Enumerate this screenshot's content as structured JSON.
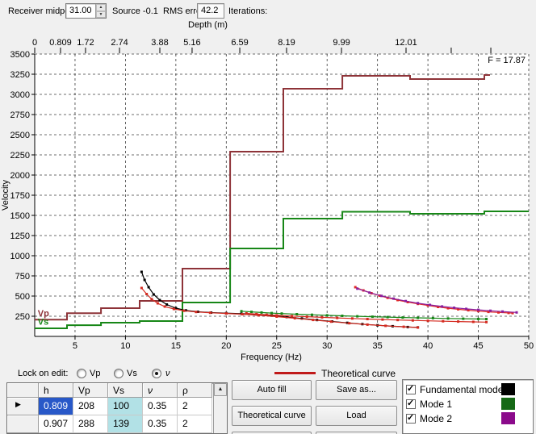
{
  "header": {
    "receiver_midpoint_label": "Receiver midpoint",
    "receiver_midpoint_value": "31.00",
    "source_label": "Source -0.1",
    "rms_error_label": "RMS error",
    "rms_error_value": "42.2",
    "iterations_label": "Iterations:"
  },
  "chart_data": {
    "type": "line",
    "xlabel": "Frequency (Hz)",
    "ylabel": "Velocity",
    "top_axis_label": "Depth (m)",
    "annotation": "F = 17.87",
    "grid": true,
    "xlim": [
      1,
      50
    ],
    "ylim": [
      0,
      3500
    ],
    "x_ticks": [
      5,
      10,
      15,
      20,
      25,
      30,
      35,
      40,
      45,
      50
    ],
    "y_ticks": [
      250,
      500,
      750,
      1000,
      1250,
      1500,
      1750,
      2000,
      2250,
      2500,
      2750,
      3000,
      3250,
      3500
    ],
    "top_axis_ticks": [
      {
        "label": "0",
        "f": 1.0
      },
      {
        "label": "0.809",
        "f": 3.56
      },
      {
        "label": "1.72",
        "f": 6.04
      },
      {
        "label": "2.74",
        "f": 9.41
      },
      {
        "label": "3.88",
        "f": 13.41
      },
      {
        "label": "5.16",
        "f": 16.61
      },
      {
        "label": "6.59",
        "f": 21.34
      },
      {
        "label": "8.19",
        "f": 25.98
      },
      {
        "label": "9.99",
        "f": 31.43
      },
      {
        "label": "12.01",
        "f": 37.83
      },
      {
        "label": "",
        "f": 42.31
      },
      {
        "label": "",
        "f": 46.24
      }
    ],
    "inline_labels": [
      {
        "text": "Vp",
        "color": "#8e3338",
        "f": 1.3,
        "v": 290
      },
      {
        "text": "Vs",
        "color": "#178717",
        "f": 1.3,
        "v": 185
      }
    ],
    "series": [
      {
        "name": "Vp model",
        "color": "#8e3338",
        "width": 2,
        "markers": false,
        "points": [
          [
            1,
            208
          ],
          [
            4.2,
            208
          ],
          [
            4.2,
            288
          ],
          [
            7.57,
            288
          ],
          [
            7.57,
            350
          ],
          [
            11.41,
            350
          ],
          [
            11.41,
            440
          ],
          [
            15.65,
            440
          ],
          [
            15.65,
            840
          ],
          [
            20.38,
            840
          ],
          [
            20.38,
            2290
          ],
          [
            25.66,
            2290
          ],
          [
            25.66,
            3070
          ],
          [
            31.51,
            3070
          ],
          [
            31.51,
            3230
          ],
          [
            38.23,
            3230
          ],
          [
            38.23,
            3190
          ],
          [
            45.6,
            3190
          ],
          [
            45.6,
            3240
          ],
          [
            46.16,
            3240
          ]
        ]
      },
      {
        "name": "Vs model",
        "color": "#178717",
        "width": 2,
        "markers": false,
        "points": [
          [
            1,
            100
          ],
          [
            4.2,
            100
          ],
          [
            4.2,
            139
          ],
          [
            7.57,
            139
          ],
          [
            7.57,
            170
          ],
          [
            11.41,
            170
          ],
          [
            11.41,
            190
          ],
          [
            15.65,
            190
          ],
          [
            15.65,
            420
          ],
          [
            20.38,
            420
          ],
          [
            20.38,
            1090
          ],
          [
            25.66,
            1090
          ],
          [
            25.66,
            1460
          ],
          [
            31.51,
            1460
          ],
          [
            31.51,
            1545
          ],
          [
            38.23,
            1545
          ],
          [
            38.23,
            1520
          ],
          [
            45.6,
            1520
          ],
          [
            45.6,
            1550
          ],
          [
            50,
            1550
          ]
        ]
      },
      {
        "name": "Fundamental mode observed",
        "color": "#000000",
        "width": 1.2,
        "markers": true,
        "points": [
          [
            11.6,
            800
          ],
          [
            11.9,
            700
          ],
          [
            12.3,
            610
          ],
          [
            12.8,
            520
          ],
          [
            13.4,
            450
          ],
          [
            14.1,
            395
          ],
          [
            15,
            350
          ],
          [
            16,
            322
          ],
          [
            17.2,
            305
          ],
          [
            18.5,
            295
          ],
          [
            20,
            288
          ],
          [
            21.5,
            281
          ],
          [
            23,
            272
          ],
          [
            24.5,
            258
          ],
          [
            26,
            240
          ],
          [
            27.5,
            222
          ],
          [
            29,
            203
          ],
          [
            30.5,
            185
          ],
          [
            32,
            168
          ],
          [
            33.5,
            152
          ],
          [
            35,
            138
          ],
          [
            36.5,
            126
          ],
          [
            38,
            116
          ],
          [
            39,
            112
          ]
        ]
      },
      {
        "name": "Fundamental mode theoretical",
        "color": "#d42a20",
        "width": 1.2,
        "markers": true,
        "points": [
          [
            11.6,
            600
          ],
          [
            12.1,
            525
          ],
          [
            12.6,
            462
          ],
          [
            13.2,
            410
          ],
          [
            13.9,
            370
          ],
          [
            14.8,
            340
          ],
          [
            15.8,
            318
          ],
          [
            17,
            303
          ],
          [
            18.4,
            293
          ],
          [
            20,
            284
          ],
          [
            21.6,
            275
          ],
          [
            23.2,
            262
          ],
          [
            25,
            245
          ],
          [
            26.8,
            225
          ],
          [
            28.6,
            204
          ],
          [
            30.4,
            183
          ],
          [
            32.2,
            163
          ],
          [
            34,
            146
          ],
          [
            35.8,
            131
          ],
          [
            37.6,
            119
          ],
          [
            39,
            110
          ]
        ]
      },
      {
        "name": "Mode 1 observed",
        "color": "#178717",
        "width": 1.2,
        "markers": true,
        "points": [
          [
            21.5,
            312
          ],
          [
            22.5,
            304
          ],
          [
            23.5,
            296
          ],
          [
            24.5,
            289
          ],
          [
            25.5,
            283
          ],
          [
            27,
            275
          ],
          [
            28.5,
            268
          ],
          [
            30,
            261
          ],
          [
            31.5,
            255
          ],
          [
            33,
            249
          ],
          [
            34.5,
            244
          ],
          [
            36,
            239
          ],
          [
            37.5,
            234
          ],
          [
            39,
            230
          ],
          [
            40.5,
            226
          ],
          [
            42,
            222
          ],
          [
            43.5,
            219
          ],
          [
            45,
            216
          ],
          [
            45.8,
            215
          ]
        ],
        "note": ""
      },
      {
        "name": "Mode 1 theoretical",
        "color": "#d42a20",
        "width": 1.2,
        "markers": true,
        "points": [
          [
            22,
            285
          ],
          [
            23,
            276
          ],
          [
            24,
            268
          ],
          [
            25,
            261
          ],
          [
            26.5,
            252
          ],
          [
            28,
            244
          ],
          [
            29.5,
            236
          ],
          [
            31,
            229
          ],
          [
            32.5,
            222
          ],
          [
            34,
            215
          ],
          [
            35.5,
            209
          ],
          [
            37,
            203
          ],
          [
            38.5,
            198
          ],
          [
            40,
            193
          ],
          [
            41.5,
            188
          ],
          [
            43,
            184
          ],
          [
            44.5,
            180
          ],
          [
            45.8,
            177
          ]
        ]
      },
      {
        "name": "Mode 2 observed",
        "color": "#e02828",
        "width": 1.2,
        "markers": true,
        "points": [
          [
            32.8,
            610
          ],
          [
            33.6,
            570
          ],
          [
            34.4,
            535
          ],
          [
            35.2,
            505
          ],
          [
            36,
            478
          ],
          [
            37,
            450
          ],
          [
            38,
            425
          ],
          [
            39,
            403
          ],
          [
            40,
            383
          ],
          [
            41,
            365
          ],
          [
            42,
            349
          ],
          [
            43,
            336
          ],
          [
            44,
            324
          ],
          [
            45,
            313
          ],
          [
            46,
            304
          ],
          [
            47,
            297
          ],
          [
            48,
            291
          ],
          [
            48.4,
            289
          ]
        ]
      },
      {
        "name": "Mode 2 theoretical",
        "color": "#8a1f9e",
        "width": 1.2,
        "markers": true,
        "points": [
          [
            33,
            592
          ],
          [
            34.2,
            543
          ],
          [
            35.4,
            502
          ],
          [
            36.6,
            468
          ],
          [
            37.8,
            438
          ],
          [
            39,
            412
          ],
          [
            40.2,
            390
          ],
          [
            41.4,
            371
          ],
          [
            42.6,
            355
          ],
          [
            43.8,
            341
          ],
          [
            45,
            329
          ],
          [
            46.2,
            318
          ],
          [
            47.4,
            308
          ],
          [
            48.8,
            297
          ]
        ]
      }
    ]
  },
  "controls": {
    "lock_on_edit_label": "Lock on edit:",
    "radios": [
      {
        "label": "Vp",
        "checked": false
      },
      {
        "label": "Vs",
        "checked": false
      },
      {
        "label": "ν",
        "checked": true
      }
    ]
  },
  "table": {
    "columns": [
      "h",
      "Vp",
      "Vs",
      "ν",
      "ρ"
    ],
    "rows": [
      [
        "0.809",
        "208",
        "100",
        "0.35",
        "2"
      ],
      [
        "0.907",
        "288",
        "139",
        "0.35",
        "2"
      ],
      [
        "",
        "",
        "",
        "",
        ""
      ]
    ],
    "selected_cell": {
      "row": 0,
      "col": 0
    },
    "row_marker": "▶",
    "scroll_up_glyph": "▲"
  },
  "buttons": {
    "auto_fill": "Auto fill",
    "save_as": "Save as...",
    "theoretical_curve": "Theoretical curve",
    "load": "Load"
  },
  "legend": {
    "label": "Theoretical curve",
    "color": "#c01a1a"
  },
  "modes": {
    "items": [
      {
        "label": "Fundamental mode",
        "checked": true,
        "color": "#000000"
      },
      {
        "label": "Mode 1",
        "checked": true,
        "color": "#166916"
      },
      {
        "label": "Mode 2",
        "checked": true,
        "color": "#8b0a8b"
      }
    ]
  },
  "spinner": {
    "up_glyph": "▲",
    "down_glyph": "▼"
  }
}
